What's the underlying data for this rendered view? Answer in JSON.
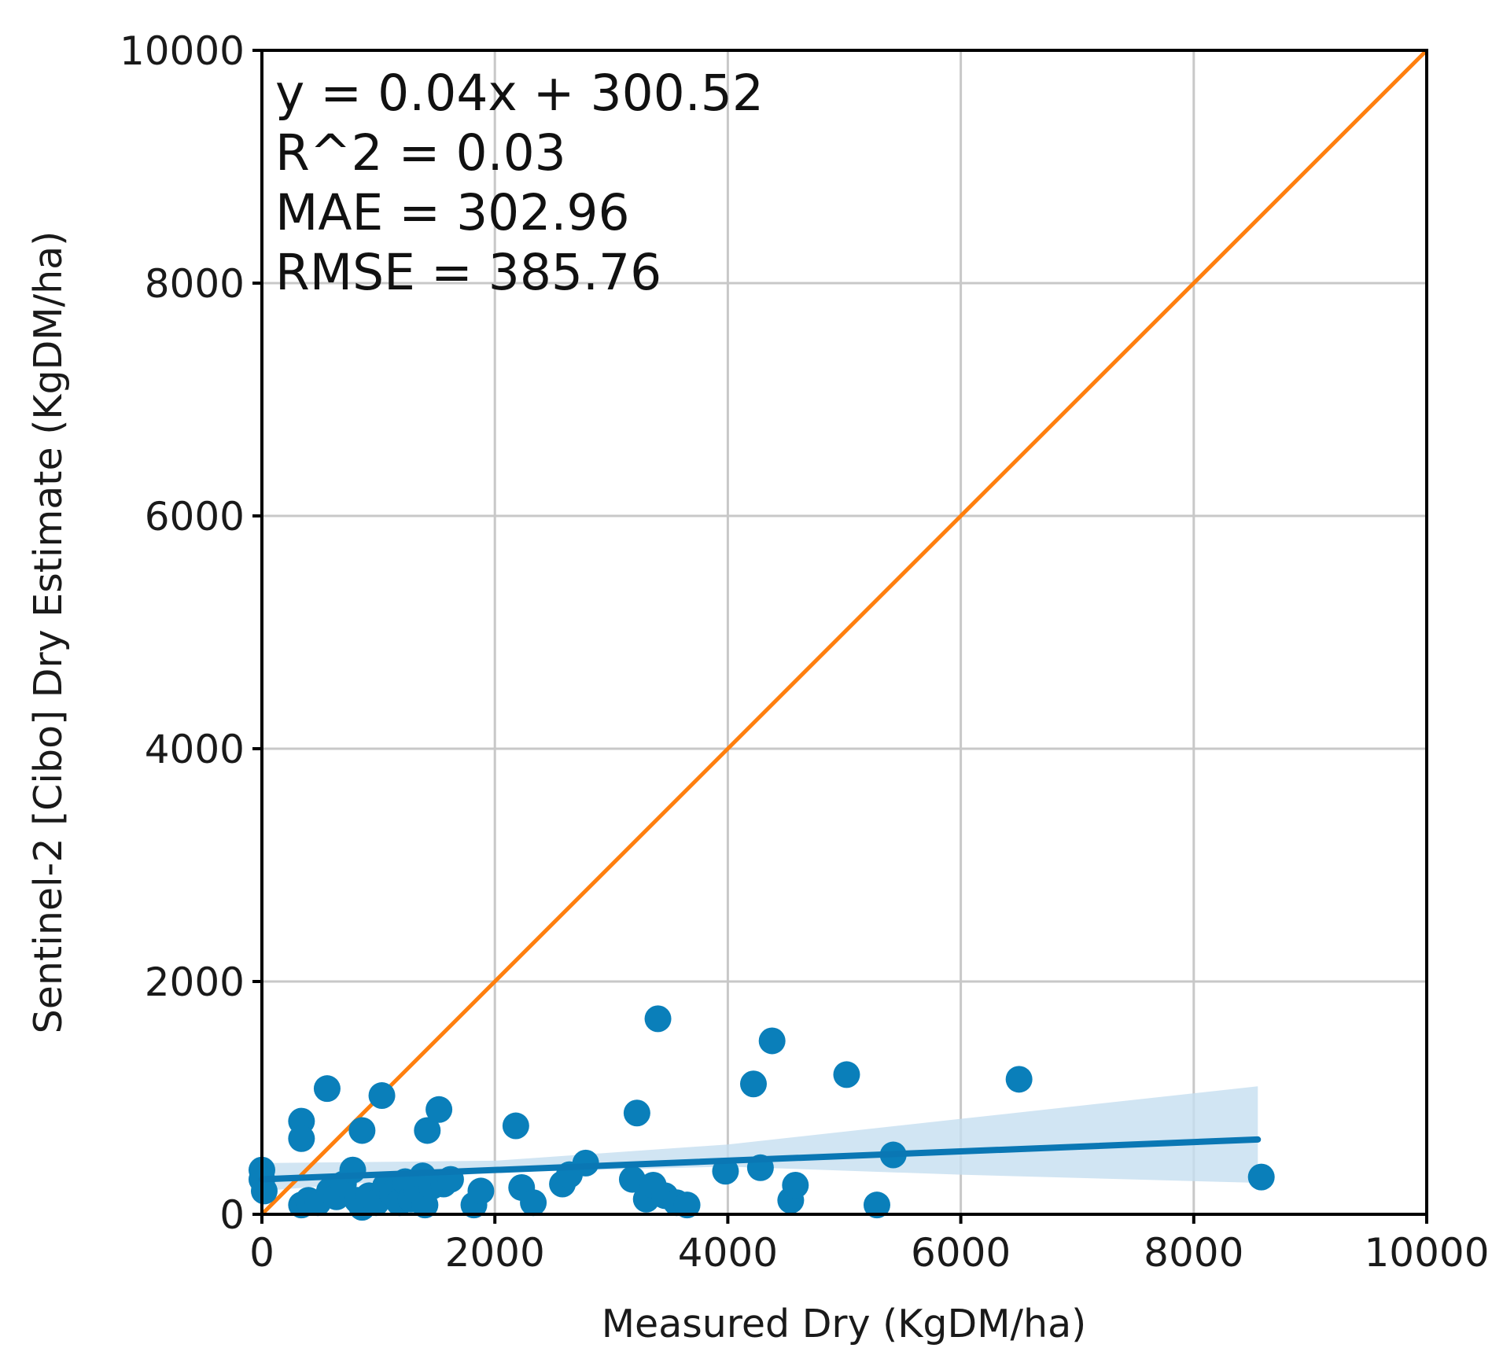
{
  "chart_data": {
    "type": "scatter",
    "title": "",
    "xlabel": "Measured Dry (KgDM/ha)",
    "ylabel": "Sentinel-2 [Cibo] Dry Estimate (KgDM/ha)",
    "xlim": [
      0,
      10000
    ],
    "ylim": [
      0,
      10000
    ],
    "xticks": [
      "0",
      "2000",
      "4000",
      "6000",
      "8000",
      "10000"
    ],
    "yticks": [
      "0",
      "2000",
      "4000",
      "6000",
      "8000",
      "10000"
    ],
    "grid": true,
    "annotations": [
      "y = 0.04x + 300.52",
      "R^2 = 0.03",
      "MAE = 302.96",
      "RMSE = 385.76"
    ],
    "colors": {
      "points": "#0a7fba",
      "fit": "#0a77b4",
      "band": "#c6dff0",
      "identity": "#ff7f0e"
    },
    "identity_line": {
      "x": [
        0,
        10000
      ],
      "y": [
        0,
        10000
      ]
    },
    "fit_line": {
      "slope": 0.04,
      "intercept": 300.52,
      "x": [
        0,
        8550
      ]
    },
    "confidence_band": {
      "x": [
        0,
        2000,
        4000,
        6000,
        8550
      ],
      "lower": [
        200,
        360,
        410,
        340,
        270
      ],
      "upper": [
        440,
        460,
        600,
        820,
        1100
      ]
    },
    "points": [
      {
        "x": 0,
        "y": 380
      },
      {
        "x": 0,
        "y": 300
      },
      {
        "x": 20,
        "y": 200
      },
      {
        "x": 340,
        "y": 800
      },
      {
        "x": 340,
        "y": 650
      },
      {
        "x": 340,
        "y": 80
      },
      {
        "x": 400,
        "y": 120
      },
      {
        "x": 480,
        "y": 100
      },
      {
        "x": 560,
        "y": 1080
      },
      {
        "x": 580,
        "y": 200
      },
      {
        "x": 640,
        "y": 150
      },
      {
        "x": 700,
        "y": 260
      },
      {
        "x": 780,
        "y": 380
      },
      {
        "x": 820,
        "y": 120
      },
      {
        "x": 860,
        "y": 60
      },
      {
        "x": 860,
        "y": 720
      },
      {
        "x": 920,
        "y": 160
      },
      {
        "x": 980,
        "y": 100
      },
      {
        "x": 1030,
        "y": 1020
      },
      {
        "x": 1060,
        "y": 240
      },
      {
        "x": 1120,
        "y": 180
      },
      {
        "x": 1180,
        "y": 100
      },
      {
        "x": 1230,
        "y": 280
      },
      {
        "x": 1280,
        "y": 130
      },
      {
        "x": 1330,
        "y": 200
      },
      {
        "x": 1380,
        "y": 330
      },
      {
        "x": 1400,
        "y": 80
      },
      {
        "x": 1420,
        "y": 720
      },
      {
        "x": 1460,
        "y": 240
      },
      {
        "x": 1520,
        "y": 900
      },
      {
        "x": 1560,
        "y": 260
      },
      {
        "x": 1620,
        "y": 300
      },
      {
        "x": 1820,
        "y": 80
      },
      {
        "x": 1880,
        "y": 200
      },
      {
        "x": 2180,
        "y": 760
      },
      {
        "x": 2230,
        "y": 230
      },
      {
        "x": 2330,
        "y": 100
      },
      {
        "x": 2580,
        "y": 260
      },
      {
        "x": 2640,
        "y": 340
      },
      {
        "x": 2780,
        "y": 440
      },
      {
        "x": 3180,
        "y": 300
      },
      {
        "x": 3220,
        "y": 870
      },
      {
        "x": 3300,
        "y": 130
      },
      {
        "x": 3360,
        "y": 250
      },
      {
        "x": 3400,
        "y": 1680
      },
      {
        "x": 3460,
        "y": 160
      },
      {
        "x": 3560,
        "y": 100
      },
      {
        "x": 3650,
        "y": 80
      },
      {
        "x": 3980,
        "y": 370
      },
      {
        "x": 4220,
        "y": 1120
      },
      {
        "x": 4280,
        "y": 400
      },
      {
        "x": 4380,
        "y": 1490
      },
      {
        "x": 4540,
        "y": 120
      },
      {
        "x": 4580,
        "y": 250
      },
      {
        "x": 5020,
        "y": 1200
      },
      {
        "x": 5280,
        "y": 80
      },
      {
        "x": 5420,
        "y": 510
      },
      {
        "x": 6500,
        "y": 1160
      },
      {
        "x": 8580,
        "y": 320
      }
    ]
  }
}
